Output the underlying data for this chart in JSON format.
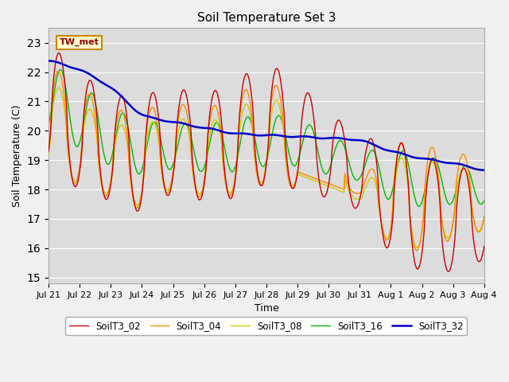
{
  "title": "Soil Temperature Set 3",
  "xlabel": "Time",
  "ylabel": "Soil Temperature (C)",
  "ylim": [
    14.8,
    23.5
  ],
  "yticks": [
    15.0,
    16.0,
    17.0,
    18.0,
    19.0,
    20.0,
    21.0,
    22.0,
    23.0
  ],
  "line_colors": {
    "SoilT3_02": "#cc0000",
    "SoilT3_04": "#ff8800",
    "SoilT3_08": "#cccc00",
    "SoilT3_16": "#00bb00",
    "SoilT3_32": "#0000cc"
  },
  "annotation_text": "TW_met",
  "bg_color": "#dcdcdc",
  "xtick_labels": [
    "Jul 21",
    "Jul 22",
    "Jul 23",
    "Jul 24",
    "Jul 25",
    "Jul 26",
    "Jul 27",
    "Jul 28",
    "Jul 29",
    "Jul 30",
    "Jul 31",
    "Aug 1",
    "Aug 2",
    "Aug 3",
    "Aug 4"
  ],
  "line_width": 1.0
}
